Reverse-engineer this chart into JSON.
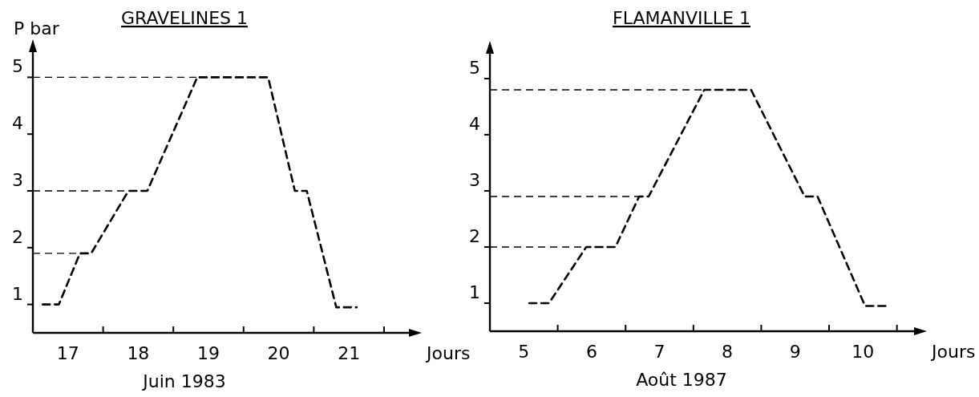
{
  "chart_data": [
    {
      "type": "line",
      "title": "GRAVELINES 1",
      "ylabel": "P bar",
      "xlabel": "Jours",
      "annotations": [
        "Juin 1983"
      ],
      "line_style": "dashed",
      "marker": "none",
      "xlim": [
        17,
        22.4
      ],
      "xticks": [
        {
          "value": 17.5,
          "label": "17"
        },
        {
          "value": 18.5,
          "label": "18"
        },
        {
          "value": 19.5,
          "label": "19"
        },
        {
          "value": 20.5,
          "label": "20"
        },
        {
          "value": 21.5,
          "label": "21"
        },
        {
          "value": 18,
          "label": null
        },
        {
          "value": 19,
          "label": null
        },
        {
          "value": 20,
          "label": null
        },
        {
          "value": 21,
          "label": null
        },
        {
          "value": 22,
          "label": null
        }
      ],
      "ylim": [
        0.5,
        5.5
      ],
      "yticks": [
        1,
        2,
        3,
        4,
        5
      ],
      "ref_lines": [
        {
          "axis": "y",
          "value": 5,
          "line_style": "dashed"
        },
        {
          "axis": "y",
          "value": 3,
          "line_style": "dashed"
        },
        {
          "axis": "y",
          "value": 1.9,
          "line_style": "dashed"
        }
      ],
      "series": [
        {
          "color": "#000000",
          "x": [
            17.14,
            17.37,
            17.67,
            17.83,
            18.36,
            18.63,
            19.34,
            20.35,
            20.73,
            20.9,
            21.32,
            21.61
          ],
          "values": [
            1,
            1,
            1.9,
            1.9,
            3,
            3,
            5,
            5,
            3,
            3,
            0.95,
            0.95
          ]
        }
      ]
    },
    {
      "type": "line",
      "title": "FLAMANVILLE 1",
      "xlabel": "Jours",
      "annotations": [
        "Août 1987"
      ],
      "line_style": "dashed",
      "marker": "none",
      "xlim": [
        5,
        11.3
      ],
      "xticks": [
        {
          "value": 5.5,
          "label": "5"
        },
        {
          "value": 6.5,
          "label": "6"
        },
        {
          "value": 7.5,
          "label": "7"
        },
        {
          "value": 8.5,
          "label": "8"
        },
        {
          "value": 9.5,
          "label": "9"
        },
        {
          "value": 10.5,
          "label": "10"
        },
        {
          "value": 6,
          "label": null
        },
        {
          "value": 7,
          "label": null
        },
        {
          "value": 8,
          "label": null
        },
        {
          "value": 9,
          "label": null
        },
        {
          "value": 10,
          "label": null
        },
        {
          "value": 11,
          "label": null
        }
      ],
      "ylim": [
        0.5,
        5.5
      ],
      "yticks": [
        1,
        2,
        3,
        4,
        5
      ],
      "ref_lines": [
        {
          "axis": "y",
          "value": 4.8,
          "line_style": "dashed"
        },
        {
          "axis": "y",
          "value": 2.9,
          "line_style": "dashed"
        },
        {
          "axis": "y",
          "value": 2,
          "line_style": "dashed"
        }
      ],
      "series": [
        {
          "color": "#000000",
          "x": [
            5.58,
            5.87,
            6.42,
            6.85,
            7.2,
            7.34,
            8.16,
            8.85,
            9.64,
            9.83,
            10.53,
            10.84
          ],
          "values": [
            1,
            1,
            2,
            2,
            2.9,
            2.9,
            4.8,
            4.8,
            2.9,
            2.9,
            0.95,
            0.95
          ]
        }
      ]
    }
  ]
}
